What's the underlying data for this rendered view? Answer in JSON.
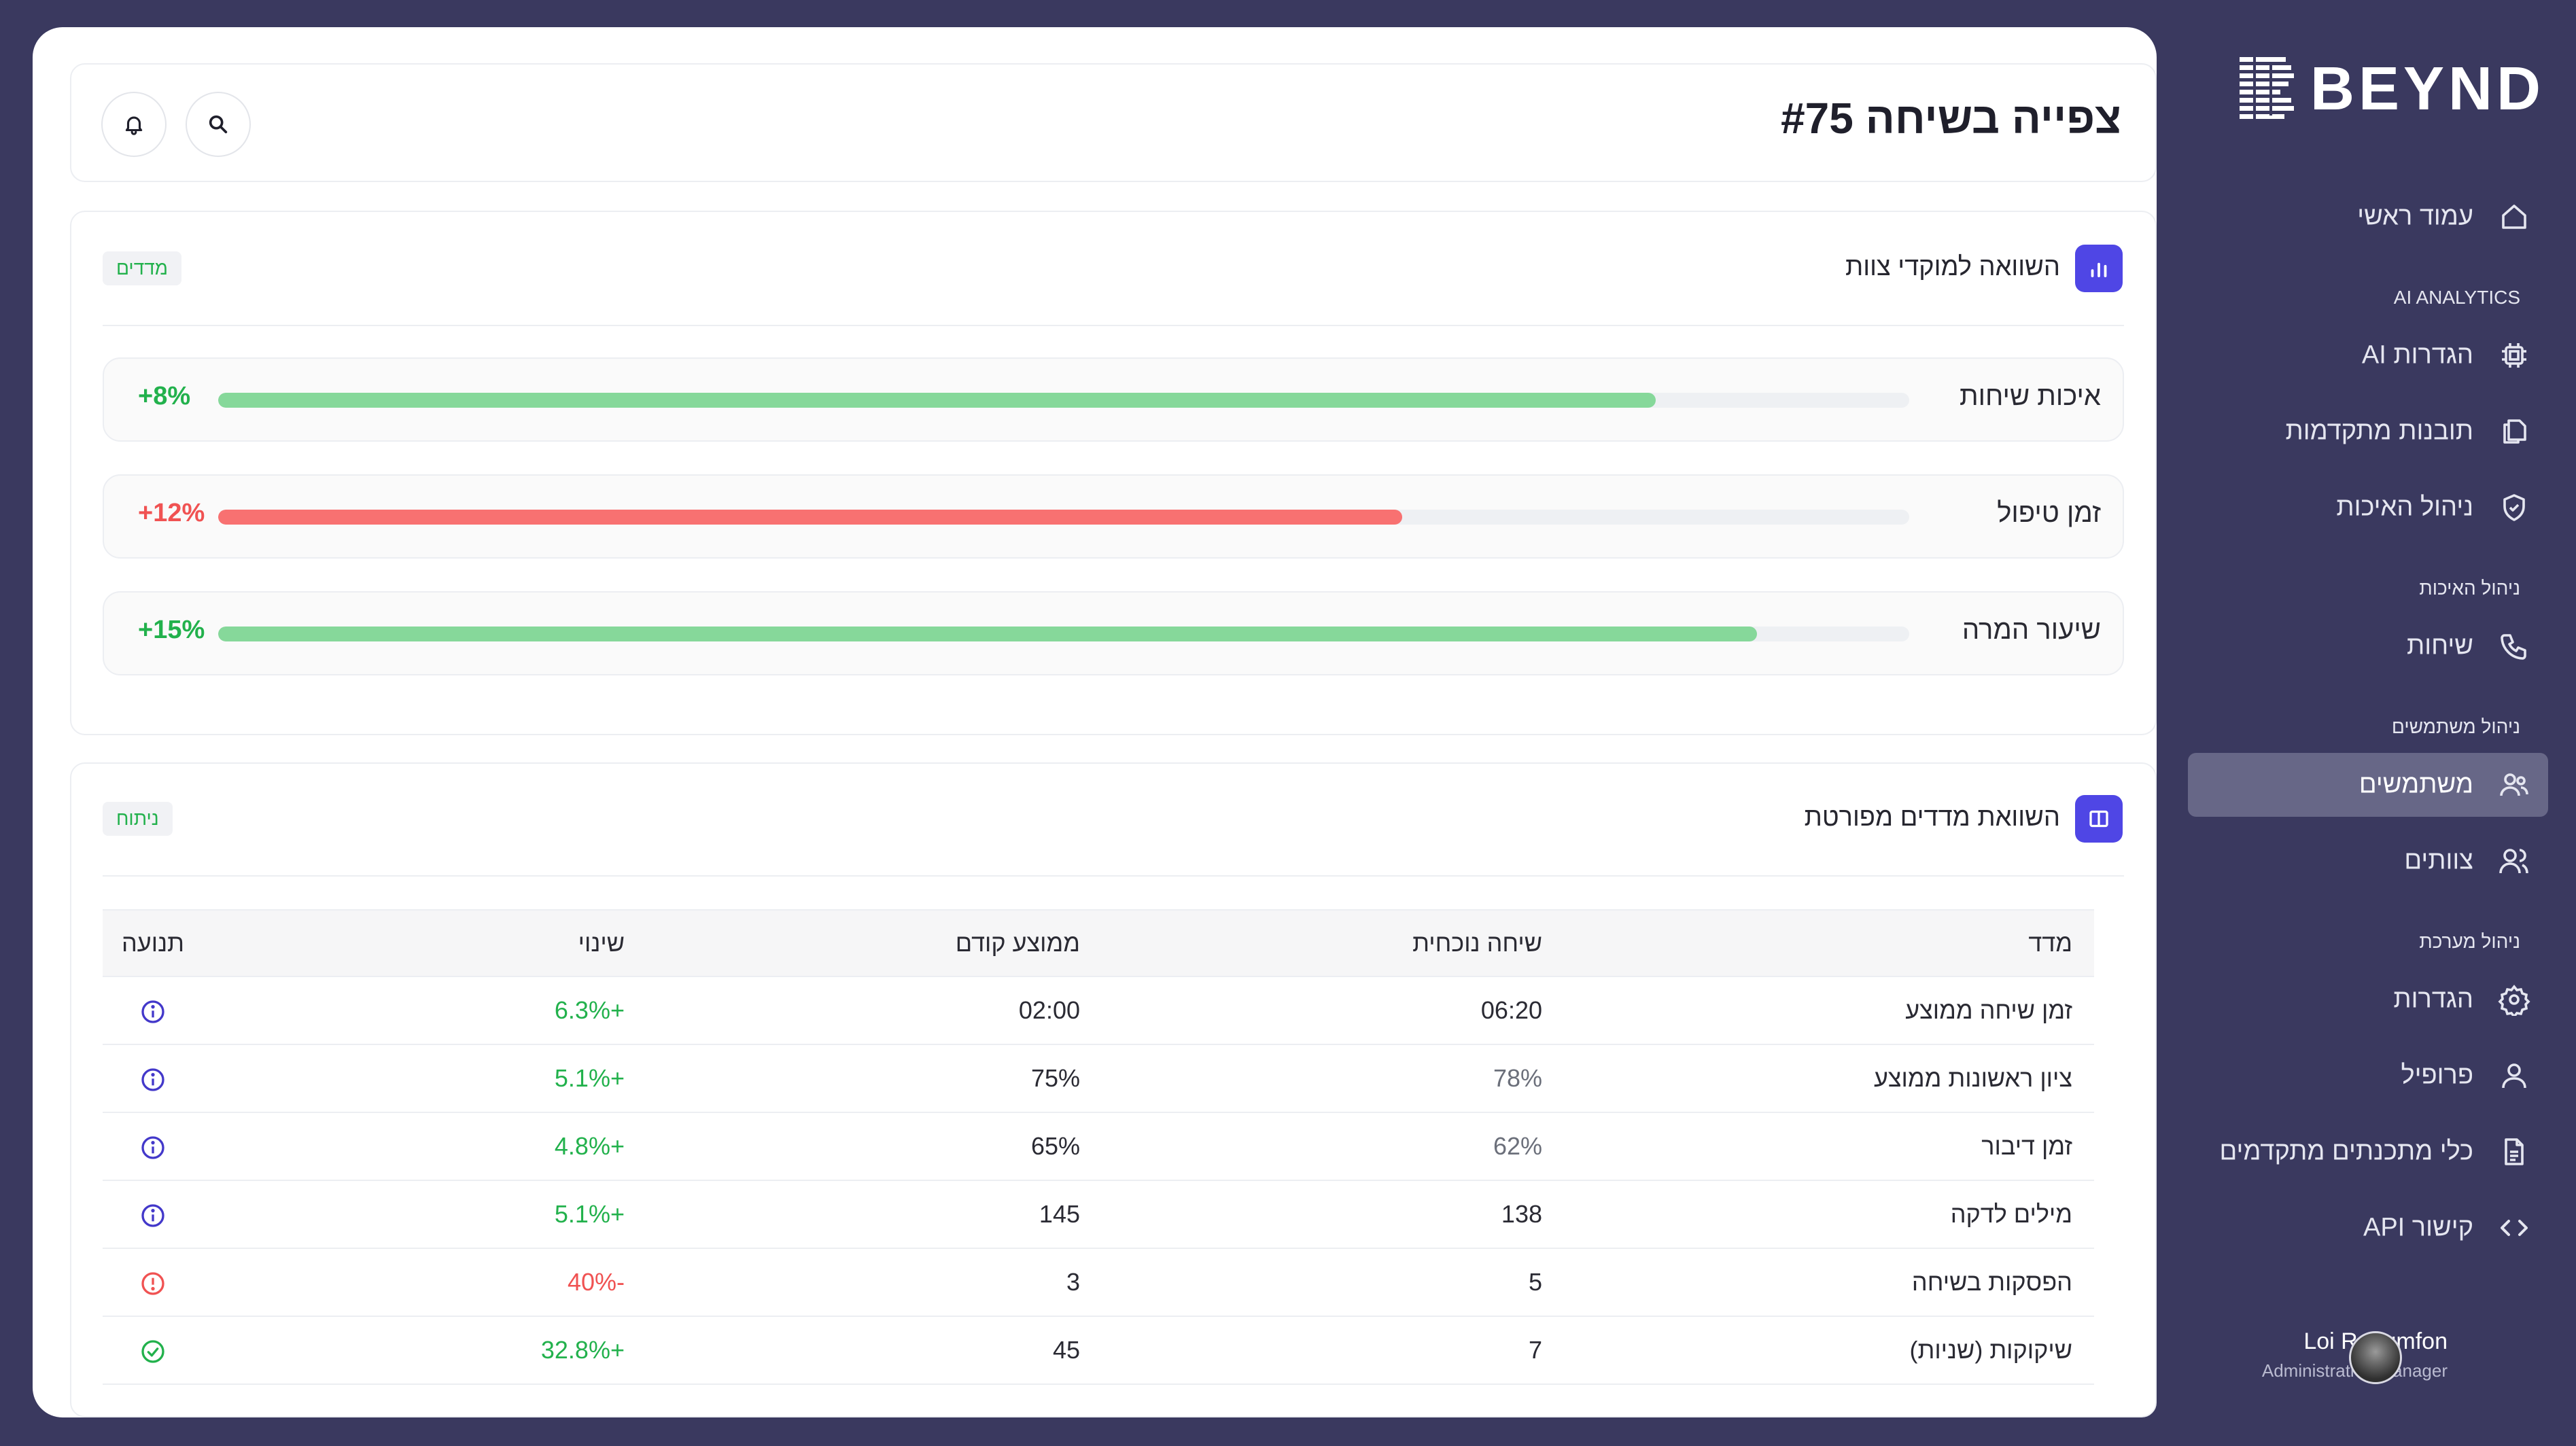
{
  "page": {
    "title": "צפייה בשיחה #75"
  },
  "comparison": {
    "title": "השוואה למוקדי צוות",
    "tag": "מדדים",
    "rows": [
      {
        "label": "איכות שיחות",
        "change": "+8%",
        "level": 0.85,
        "color": "#86d89a",
        "change_color": "#22b14c"
      },
      {
        "label": "זמן טיפול",
        "change": "+12%",
        "level": 0.7,
        "color": "#f87171",
        "change_color": "#f05252"
      },
      {
        "label": "שיעור המרה",
        "change": "+15%",
        "level": 0.91,
        "color": "#86d89a",
        "change_color": "#22b14c"
      }
    ]
  },
  "detailed": {
    "title": "השוואת מדדים מפורטת",
    "tag": "ניתוח",
    "headers": [
      "מדד",
      "שיחה נוכחית",
      "ממוצע קודם",
      "שינוי",
      "תנועה"
    ],
    "rows": [
      {
        "metric": "זמן שיחה ממוצע",
        "current": "06:20",
        "previous": "02:00",
        "change": "+6.3%",
        "status": "info-icon"
      },
      {
        "metric": "ציון ראשונות ממוצע",
        "current": "78%",
        "previous": "75%",
        "change": "+5.1%",
        "status": "info-icon"
      },
      {
        "metric": "זמן דיבור",
        "current": "62%",
        "previous": "65%",
        "change": "+4.8%",
        "status": "info-icon"
      },
      {
        "metric": "מילים לדקה",
        "current": "138",
        "previous": "145",
        "change": "+5.1%",
        "status": "info-icon"
      },
      {
        "metric": "הפסקות בשיחה",
        "current": "5",
        "previous": "3",
        "change": "-40%",
        "status": "warning-icon"
      },
      {
        "metric": "שיקוקות (שניות)",
        "current": "7",
        "previous": "45",
        "change": "+32.8%",
        "status": "check-circle-icon"
      }
    ]
  },
  "sidebar": {
    "logo_text": "BEYND",
    "home": "עמוד ראשי",
    "sections": {
      "ai": "AI ANALYTICS",
      "quality": "ניהול האיכות",
      "users": "ניהול משתמשים",
      "system": "ניהול מערכת"
    },
    "items": {
      "ai_settings": "הגדרות AI",
      "insights": "תובנות מתקדמות",
      "quality": "ניהול האיכות",
      "calls": "שיחות",
      "users": "משתמשים",
      "teams": "צוותים",
      "settings": "הגדרות",
      "profile": "פרופיל",
      "dev_tools": "כלי מתכנתים מתקדמים",
      "api": "קישור API"
    },
    "user": {
      "name": "Loi Rougmfon",
      "role": "Administrative Manager"
    }
  },
  "colors": {
    "background": "#3a395f",
    "accent": "#4f46e5",
    "positive": "#22b14c",
    "negative": "#f05252",
    "active_nav": "#676787"
  }
}
